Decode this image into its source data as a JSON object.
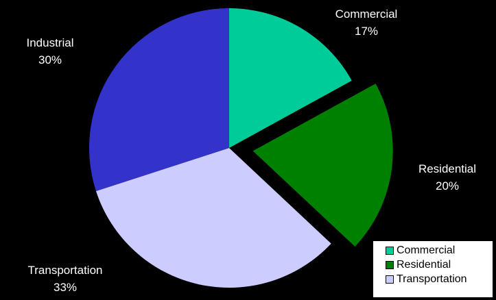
{
  "chart_data": {
    "type": "pie",
    "title": "",
    "slices": [
      {
        "label": "Commercial",
        "value": 17,
        "display": "17%",
        "color": "#00CC99",
        "exploded": false
      },
      {
        "label": "Residential",
        "value": 20,
        "display": "20%",
        "color": "#008000",
        "exploded": true
      },
      {
        "label": "Transportation",
        "value": 33,
        "display": "33%",
        "color": "#CCCCFF",
        "exploded": false
      },
      {
        "label": "Industrial",
        "value": 30,
        "display": "30%",
        "color": "#3333CC",
        "exploded": false
      }
    ],
    "start": "12 o'clock",
    "direction": "clockwise",
    "legend": {
      "placement": "bottom-right",
      "entries": [
        "Commercial",
        "Residential",
        "Transportation"
      ]
    },
    "background": "#000000"
  }
}
